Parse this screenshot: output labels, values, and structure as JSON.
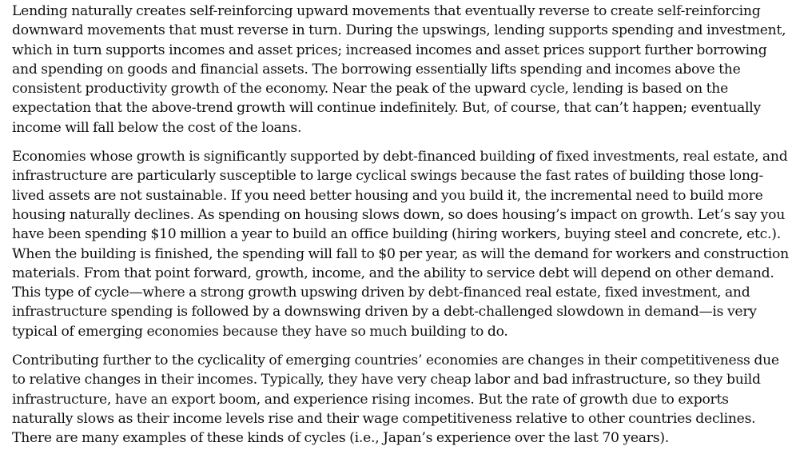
{
  "document": {
    "paragraphs": [
      "Lending naturally creates self-reinforcing upward movements that eventually reverse to create self-reinforcing downward movements that must reverse in turn. During the upswings, lending supports spending and investment, which in turn supports incomes and asset prices; increased incomes and asset prices support further borrowing and spending on goods and financial assets. The borrowing essentially lifts spending and incomes above the consistent productivity growth of the economy. Near the peak of the upward cycle, lending is based on the expectation that the above-trend growth will continue indefinitely. But, of course, that can’t happen; eventually income will fall below the cost of the loans.",
      "Economies whose growth is significantly supported by debt-financed building of fixed investments, real estate, and infrastructure are particularly susceptible to large cyclical swings because the fast rates of building those long-lived assets are not sustainable. If you need better housing and you build it, the incremental need to build more housing naturally declines. As spending on housing slows down, so does housing’s impact on growth. Let’s say you have been spending $10 million a year to build an office building (hiring workers, buying steel and concrete, etc.). When the building is finished, the spending will fall to $0 per year, as will the demand for workers and construction materials. From that point forward, growth, income, and the ability to service debt will depend on other demand. This type of cycle—where a strong growth upswing driven by debt-financed real estate, fixed investment, and infrastructure spending is followed by a downswing driven by a debt-challenged slowdown in demand—is very typical of emerging economies because they have so much building to do.",
      "Contributing further to the cyclicality of emerging countries’ economies are changes in their competitiveness due to relative changes in their incomes. Typically, they have very cheap labor and bad infrastructure, so they build infrastructure, have an export boom, and experience rising incomes. But the rate of growth due to exports naturally slows as their income levels rise and their wage competitiveness relative to other countries declines. There are many examples of these kinds of cycles (i.e., Japan’s experience over the last 70 years)."
    ]
  }
}
